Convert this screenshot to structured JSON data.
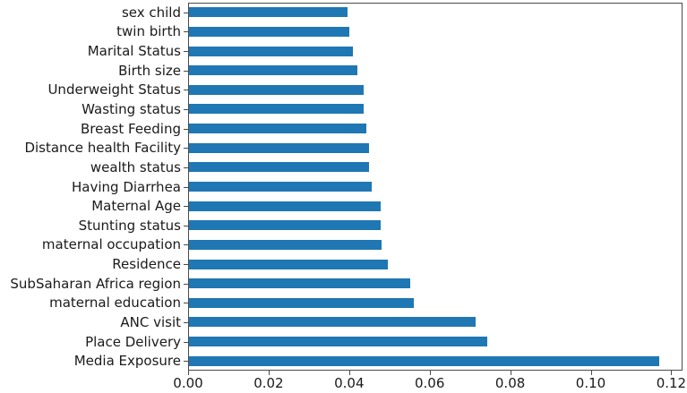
{
  "chart_data": {
    "type": "bar",
    "orientation": "horizontal",
    "title": "",
    "xlabel": "",
    "ylabel": "",
    "grid": false,
    "legend": null,
    "bar_color": "#1f77b4",
    "categories": [
      "sex child",
      "twin birth",
      "Marital Status",
      "Birth size",
      "Underweight Status",
      "Wasting status",
      "Breast Feeding",
      "Distance health Facility",
      "wealth status",
      "Having Diarrhea",
      "Maternal Age",
      "Stunting status",
      "maternal occupation",
      "Residence",
      "SubSaharan Africa region",
      "maternal education",
      "ANC visit",
      "Place Delivery",
      "Media Exposure"
    ],
    "values": [
      0.0395,
      0.04,
      0.041,
      0.0421,
      0.0435,
      0.0435,
      0.0443,
      0.0449,
      0.0449,
      0.0455,
      0.0478,
      0.0478,
      0.0481,
      0.0495,
      0.0551,
      0.056,
      0.0714,
      0.0744,
      0.117
    ],
    "x_ticks": [
      {
        "value": 0.0,
        "label": "0.00"
      },
      {
        "value": 0.02,
        "label": "0.02"
      },
      {
        "value": 0.04,
        "label": "0.04"
      },
      {
        "value": 0.06,
        "label": "0.06"
      },
      {
        "value": 0.08,
        "label": "0.08"
      },
      {
        "value": 0.1,
        "label": "0.10"
      },
      {
        "value": 0.12,
        "label": "0.12"
      }
    ],
    "xlim": [
      0,
      0.1228
    ]
  }
}
